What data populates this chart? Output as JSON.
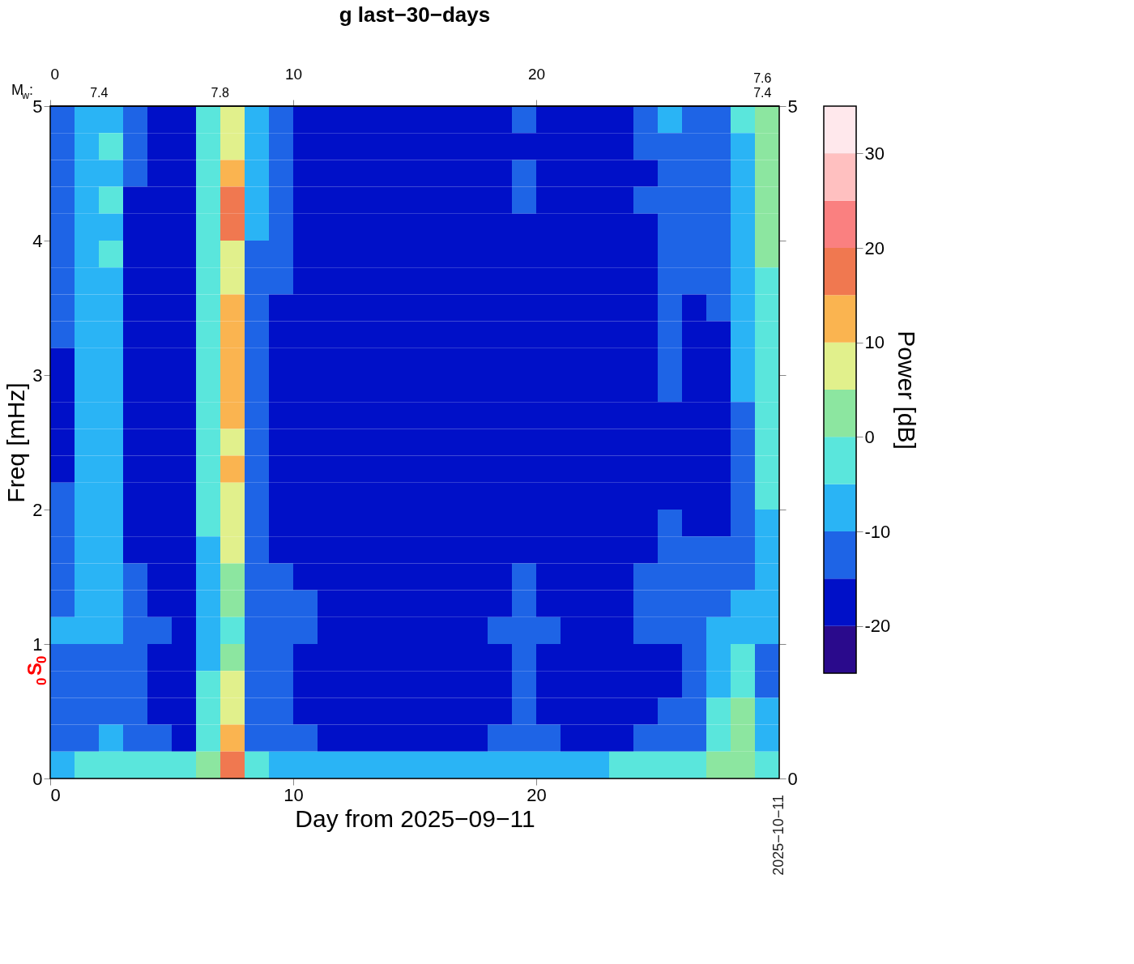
{
  "chart_data": {
    "type": "heatmap",
    "title": "g last−30−days",
    "xlabel": "Day from 2025−09−11",
    "ylabel": "Freq [mHz]",
    "clabel": "Power [dB]",
    "x": [
      0.5,
      1.5,
      2.5,
      3.5,
      4.5,
      5.5,
      6.5,
      7.5,
      8.5,
      9.5,
      10.5,
      11.5,
      12.5,
      13.5,
      14.5,
      15.5,
      16.5,
      17.5,
      18.5,
      19.5,
      20.5,
      21.5,
      22.5,
      23.5,
      24.5,
      25.5,
      26.5,
      27.5,
      28.5,
      29.5
    ],
    "y": [
      4.9,
      4.7,
      4.5,
      4.3,
      4.1,
      3.9,
      3.7,
      3.5,
      3.3,
      3.1,
      2.9,
      2.7,
      2.5,
      2.3,
      2.1,
      1.9,
      1.7,
      1.5,
      1.3,
      1.1,
      0.9,
      0.7,
      0.5,
      0.3,
      0.1
    ],
    "xlim": [
      0,
      30
    ],
    "xticks": [
      0,
      10,
      20
    ],
    "ylim": [
      0,
      5
    ],
    "yticks": [
      0,
      1,
      2,
      3,
      4,
      5
    ],
    "x2lim": [
      0,
      30
    ],
    "x2ticks": [
      0,
      10,
      20
    ],
    "y2lim": [
      0,
      5
    ],
    "y2ticks": [
      0,
      {
        "value": 1,
        "label": null
      },
      {
        "value": 2,
        "label": null
      },
      {
        "value": 3,
        "label": null
      },
      {
        "value": 4,
        "label": null
      },
      5
    ],
    "clim": [
      -25,
      35
    ],
    "cticks": [
      -20,
      -10,
      0,
      10,
      20,
      30
    ],
    "colors": [
      "#2a0a8c",
      "#0010c8",
      "#1e64e6",
      "#2ab4f5",
      "#5ae6dc",
      "#8ce6a0",
      "#e1f08c",
      "#fab450",
      "#f07850",
      "#fa8080",
      "#ffc0c0",
      "#ffe8ec"
    ],
    "cells": [
      [
        -12,
        -8,
        -6,
        -14,
        -16,
        -17,
        -5,
        6,
        -7,
        -12,
        -16,
        -17,
        -17,
        -18,
        -16,
        -17,
        -17,
        -18,
        -16,
        -15,
        -16,
        -17,
        -16,
        -17,
        -14,
        -10,
        -13,
        -12,
        -5,
        2
      ],
      [
        -13,
        -7,
        -5,
        -15,
        -17,
        -17,
        -4,
        8,
        -8,
        -13,
        -16,
        -18,
        -17,
        -18,
        -17,
        -18,
        -17,
        -17,
        -16,
        -16,
        -17,
        -18,
        -17,
        -17,
        -15,
        -11,
        -14,
        -13,
        -6,
        3
      ],
      [
        -14,
        -8,
        -6,
        -15,
        -17,
        -18,
        -3,
        14,
        -9,
        -14,
        -17,
        -18,
        -18,
        -17,
        -17,
        -18,
        -18,
        -17,
        -17,
        -15,
        -17,
        -18,
        -17,
        -18,
        -16,
        -12,
        -15,
        -14,
        -7,
        4
      ],
      [
        -14,
        -7,
        -5,
        -16,
        -17,
        -18,
        -2,
        18,
        -9,
        -14,
        -17,
        -17,
        -18,
        -18,
        -17,
        -17,
        -18,
        -18,
        -17,
        -15,
        -17,
        -17,
        -18,
        -17,
        -15,
        -11,
        -14,
        -14,
        -6,
        2
      ],
      [
        -15,
        -8,
        -6,
        -16,
        -18,
        -18,
        -3,
        15,
        -10,
        -15,
        -17,
        -18,
        -18,
        -17,
        -18,
        -18,
        -17,
        -18,
        -17,
        -16,
        -17,
        -18,
        -17,
        -18,
        -16,
        -12,
        -15,
        -14,
        -7,
        3
      ],
      [
        -14,
        -6,
        -5,
        -16,
        -17,
        -18,
        -5,
        6,
        -11,
        -15,
        -17,
        -18,
        -17,
        -18,
        -18,
        -17,
        -18,
        -17,
        -17,
        -16,
        -17,
        -17,
        -18,
        -17,
        -16,
        -13,
        -15,
        -15,
        -8,
        0
      ],
      [
        -15,
        -8,
        -6,
        -16,
        -18,
        -18,
        -5,
        9,
        -11,
        -15,
        -17,
        -18,
        -18,
        -17,
        -18,
        -18,
        -17,
        -18,
        -17,
        -16,
        -17,
        -18,
        -17,
        -18,
        -16,
        -14,
        -15,
        -15,
        -9,
        -1
      ],
      [
        -15,
        -7,
        -6,
        -16,
        -17,
        -18,
        -4,
        12,
        -12,
        -16,
        -17,
        -18,
        -17,
        -18,
        -17,
        -18,
        -18,
        -17,
        -18,
        -16,
        -17,
        -17,
        -18,
        -17,
        -17,
        -14,
        -16,
        -15,
        -9,
        -1
      ],
      [
        -15,
        -8,
        -7,
        -17,
        -18,
        -18,
        -4,
        13,
        -12,
        -16,
        -18,
        -17,
        -18,
        -18,
        -17,
        -17,
        -18,
        -18,
        -17,
        -17,
        -18,
        -18,
        -17,
        -18,
        -17,
        -15,
        -16,
        -16,
        -10,
        -2
      ],
      [
        -16,
        -7,
        -6,
        -17,
        -18,
        -19,
        -4,
        12,
        -12,
        -16,
        -18,
        -18,
        -17,
        -18,
        -18,
        -17,
        -18,
        -17,
        -18,
        -17,
        -17,
        -18,
        -18,
        -17,
        -17,
        -15,
        -16,
        -16,
        -10,
        -2
      ],
      [
        -16,
        -8,
        -6,
        -17,
        -18,
        -18,
        -5,
        11,
        -13,
        -16,
        -17,
        -18,
        -18,
        -17,
        -18,
        -18,
        -17,
        -18,
        -17,
        -17,
        -18,
        -17,
        -18,
        -18,
        -17,
        -15,
        -16,
        -16,
        -10,
        -3
      ],
      [
        -16,
        -8,
        -7,
        -17,
        -18,
        -19,
        -5,
        10,
        -13,
        -17,
        -18,
        -18,
        -17,
        -18,
        -18,
        -17,
        -18,
        -18,
        -17,
        -17,
        -18,
        -18,
        -17,
        -18,
        -17,
        -16,
        -17,
        -16,
        -11,
        -3
      ],
      [
        -16,
        -9,
        -7,
        -17,
        -18,
        -18,
        -5,
        9,
        -13,
        -17,
        -18,
        -17,
        -18,
        -18,
        -17,
        -18,
        -18,
        -17,
        -18,
        -17,
        -17,
        -18,
        -18,
        -17,
        -17,
        -16,
        -16,
        -17,
        -11,
        -4
      ],
      [
        -16,
        -9,
        -8,
        -17,
        -18,
        -19,
        -5,
        10,
        -13,
        -17,
        -18,
        -18,
        -18,
        -17,
        -18,
        -18,
        -17,
        -18,
        -18,
        -17,
        -18,
        -17,
        -18,
        -18,
        -17,
        -16,
        -17,
        -16,
        -11,
        -4
      ],
      [
        -15,
        -8,
        -7,
        -17,
        -18,
        -18,
        -4,
        9,
        -13,
        -17,
        -18,
        -18,
        -17,
        -18,
        -18,
        -17,
        -18,
        -18,
        -17,
        -17,
        -18,
        -18,
        -17,
        -18,
        -17,
        -16,
        -16,
        -16,
        -12,
        -5
      ],
      [
        -15,
        -9,
        -8,
        -16,
        -17,
        -18,
        -5,
        7,
        -13,
        -16,
        -17,
        -18,
        -18,
        -17,
        -18,
        -18,
        -17,
        -18,
        -17,
        -16,
        -17,
        -18,
        -18,
        -17,
        -16,
        -15,
        -16,
        -16,
        -12,
        -6
      ],
      [
        -14,
        -10,
        -9,
        -16,
        -17,
        -18,
        -6,
        5,
        -13,
        -16,
        -17,
        -18,
        -17,
        -18,
        -17,
        -18,
        -18,
        -17,
        -17,
        -16,
        -17,
        -17,
        -18,
        -17,
        -16,
        -14,
        -15,
        -15,
        -12,
        -7
      ],
      [
        -12,
        -10,
        -9,
        -15,
        -16,
        -17,
        -6,
        4,
        -12,
        -15,
        -16,
        -17,
        -17,
        -16,
        -17,
        -17,
        -16,
        -17,
        -16,
        -15,
        -16,
        -17,
        -17,
        -16,
        -15,
        -11,
        -13,
        -13,
        -11,
        -8
      ],
      [
        -11,
        -10,
        -9,
        -14,
        -16,
        -17,
        -7,
        2,
        -12,
        -14,
        -15,
        -16,
        -16,
        -16,
        -17,
        -16,
        -16,
        -17,
        -16,
        -14,
        -16,
        -16,
        -17,
        -16,
        -15,
        -12,
        -13,
        -12,
        -10,
        -9
      ],
      [
        -9,
        -10,
        -9,
        -14,
        -15,
        -16,
        -8,
        -2,
        -12,
        -14,
        -15,
        -16,
        -16,
        -16,
        -16,
        -16,
        -16,
        -16,
        -15,
        -14,
        -15,
        -16,
        -16,
        -16,
        -15,
        -14,
        -14,
        -10,
        -7,
        -10
      ],
      [
        -12,
        -12,
        -11,
        -15,
        -16,
        -17,
        -6,
        3,
        -13,
        -15,
        -16,
        -17,
        -17,
        -17,
        -17,
        -17,
        -16,
        -17,
        -16,
        -15,
        -16,
        -17,
        -17,
        -17,
        -16,
        -16,
        -15,
        -8,
        -5,
        -11
      ],
      [
        -12,
        -12,
        -11,
        -15,
        -16,
        -17,
        -4,
        5,
        -13,
        -15,
        -16,
        -17,
        -17,
        -17,
        -16,
        -17,
        -17,
        -17,
        -16,
        -15,
        -16,
        -17,
        -17,
        -17,
        -16,
        -16,
        -14,
        -6,
        -3,
        -11
      ],
      [
        -12,
        -12,
        -11,
        -15,
        -16,
        -17,
        -3,
        7,
        -13,
        -15,
        -16,
        -16,
        -17,
        -17,
        -17,
        -16,
        -17,
        -17,
        -16,
        -15,
        -16,
        -17,
        -16,
        -17,
        -16,
        -15,
        -14,
        -4,
        0,
        -10
      ],
      [
        -11,
        -11,
        -10,
        -14,
        -15,
        -16,
        -2,
        10,
        -12,
        -14,
        -15,
        -16,
        -16,
        -16,
        -16,
        -16,
        -16,
        -16,
        -15,
        -14,
        -15,
        -16,
        -16,
        -16,
        -15,
        -14,
        -12,
        -3,
        2,
        -9
      ],
      [
        -6,
        -5,
        -4,
        -4,
        -2,
        -5,
        2,
        18,
        -5,
        -6,
        -6,
        -7,
        -7,
        -7,
        -7,
        -7,
        -7,
        -7,
        -6,
        -6,
        -6,
        -6,
        -6,
        -5,
        -5,
        -5,
        -5,
        0,
        4,
        -5
      ]
    ],
    "annotations": [
      "M$_{w}$:",
      "7.4",
      "7.8",
      "7.4",
      "7.6",
      "$_{0}$S$_{0}$",
      "2025−10−11"
    ]
  }
}
